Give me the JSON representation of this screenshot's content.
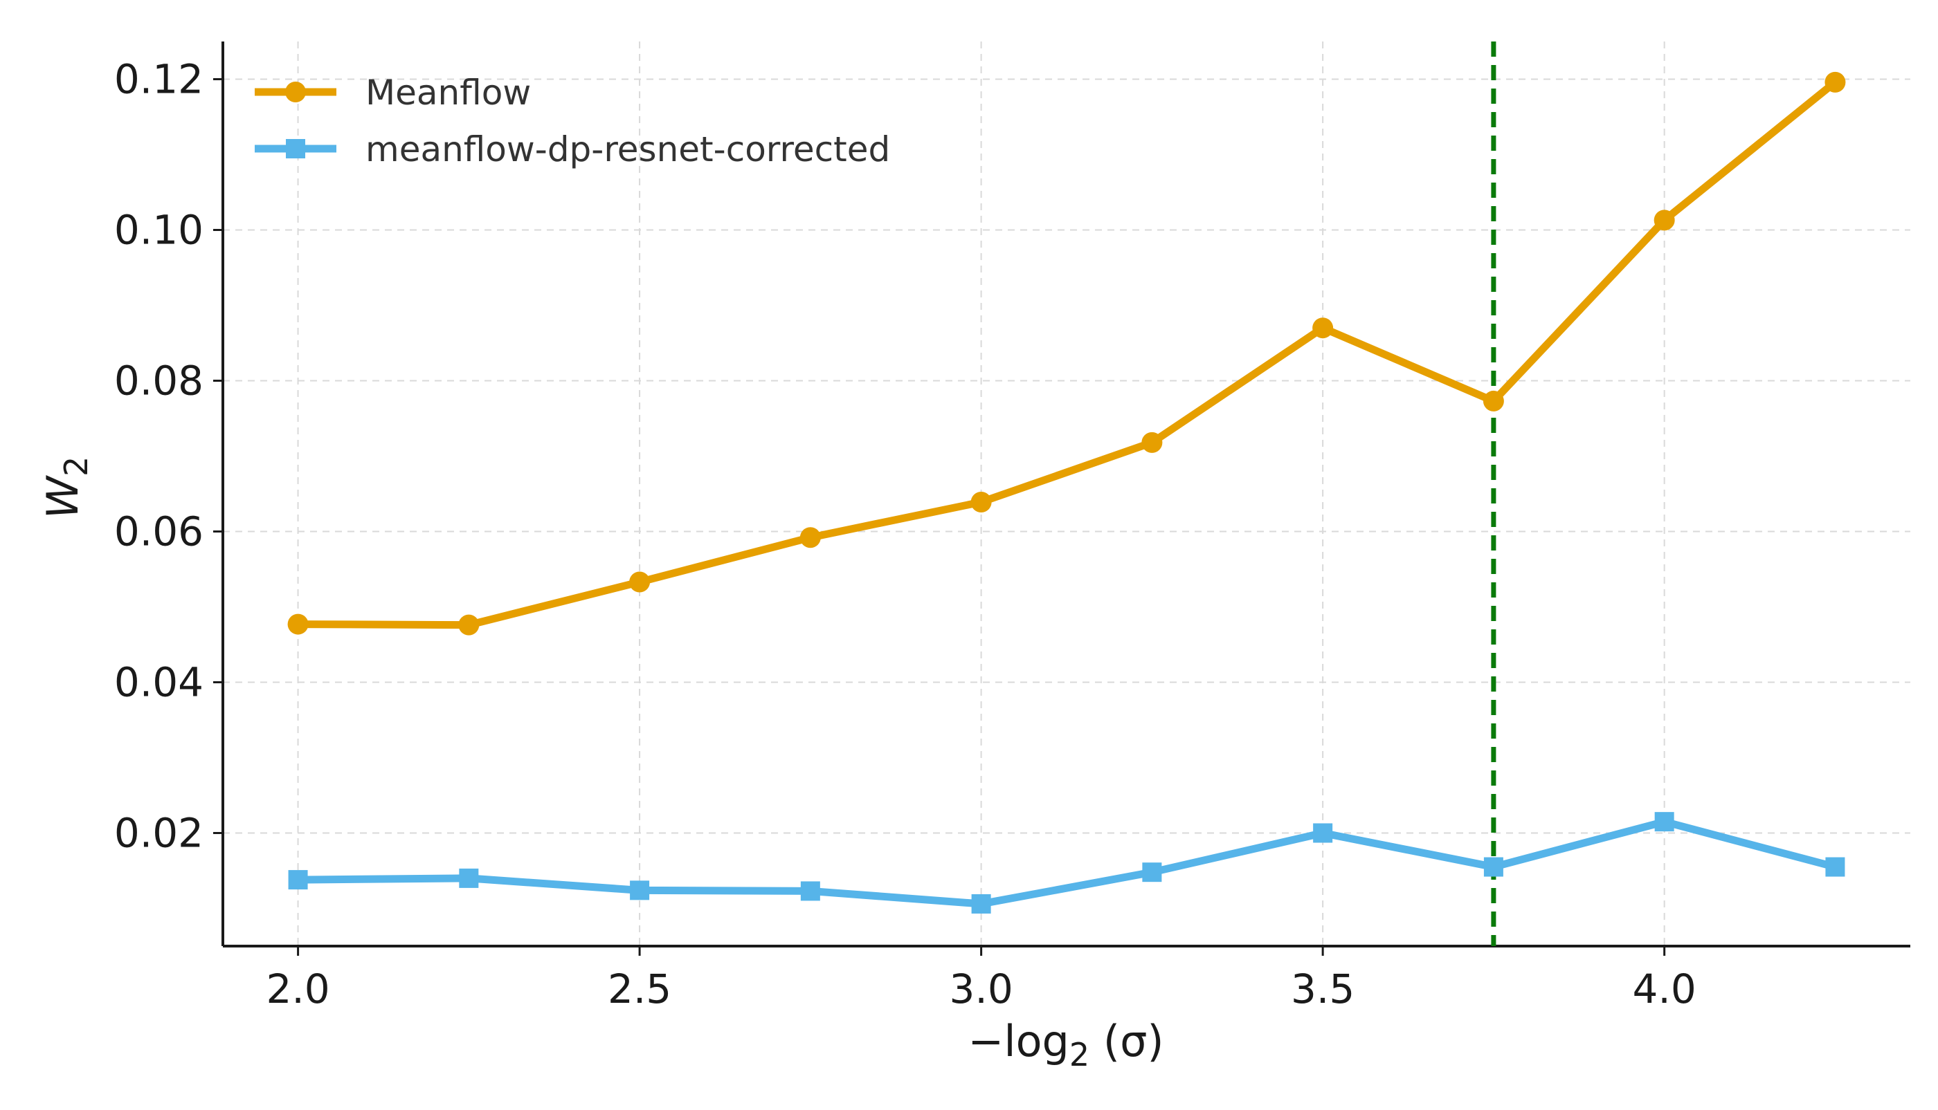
{
  "chart_data": {
    "type": "line",
    "title": "",
    "xlabel": "−log",
    "xlabel_sub": "2",
    "xlabel_tail": " (σ)",
    "ylabel": "W",
    "ylabel_sub": "2",
    "x": [
      2.0,
      2.25,
      2.5,
      2.75,
      3.0,
      3.25,
      3.5,
      3.75,
      4.0,
      4.25
    ],
    "xlim": [
      1.89,
      4.36
    ],
    "ylim": [
      0.005,
      0.125
    ],
    "xticks": [
      2.0,
      2.5,
      3.0,
      3.5,
      4.0
    ],
    "xtick_labels": [
      "2.0",
      "2.5",
      "3.0",
      "3.5",
      "4.0"
    ],
    "yticks": [
      0.02,
      0.04,
      0.06,
      0.08,
      0.1,
      0.12
    ],
    "ytick_labels": [
      "0.02",
      "0.04",
      "0.06",
      "0.08",
      "0.10",
      "0.12"
    ],
    "grid": true,
    "legend_position": "top-left",
    "vline": {
      "x": 3.75,
      "color": "#0a7a0a",
      "style": "dashed"
    },
    "series": [
      {
        "name": "Meanflow",
        "color": "#e69f00",
        "marker": "circle",
        "values": [
          0.0477,
          0.0476,
          0.0533,
          0.0592,
          0.0639,
          0.0718,
          0.087,
          0.0773,
          0.1013,
          0.1196
        ]
      },
      {
        "name": "meanflow-dp-resnet-corrected",
        "color": "#56b4e9",
        "marker": "square",
        "values": [
          0.0138,
          0.014,
          0.0124,
          0.0123,
          0.0106,
          0.0148,
          0.02,
          0.0155,
          0.0215,
          0.0155
        ]
      }
    ]
  }
}
